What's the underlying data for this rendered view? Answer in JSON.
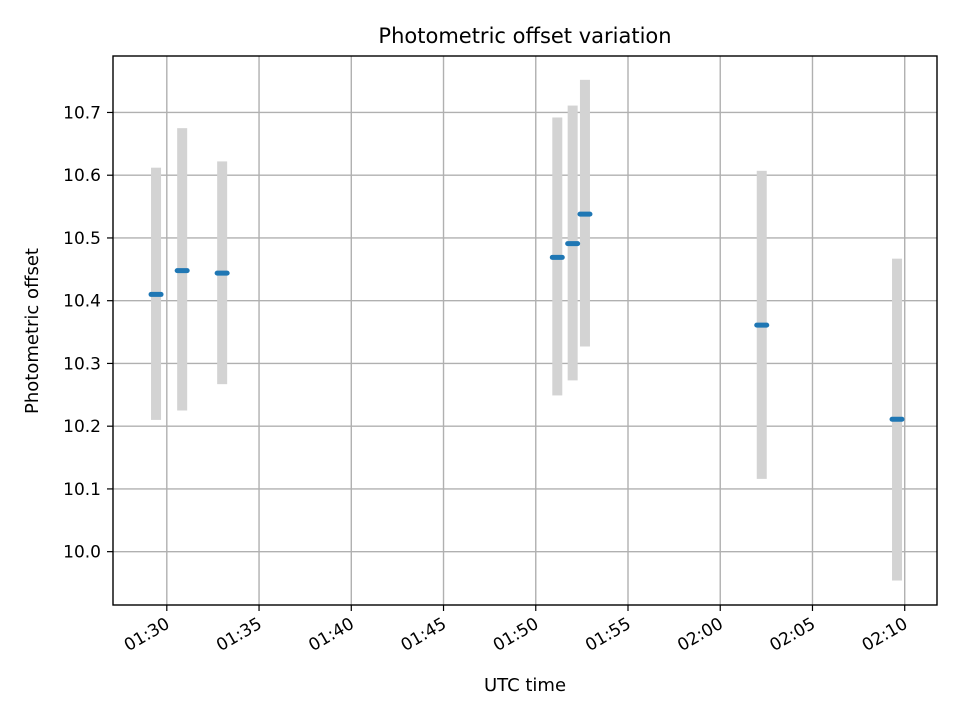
{
  "chart_data": {
    "type": "scatter",
    "title": "Photometric offset variation",
    "xlabel": "UTC time",
    "ylabel": "Photometric offset",
    "x_tick_labels": [
      "01:30",
      "01:35",
      "01:40",
      "01:45",
      "01:50",
      "01:55",
      "02:00",
      "02:05",
      "02:10"
    ],
    "y_tick_labels": [
      "10.0",
      "10.1",
      "10.2",
      "10.3",
      "10.4",
      "10.5",
      "10.6",
      "10.7"
    ],
    "x_ticks": [
      "01:30",
      "01:35",
      "01:40",
      "01:45",
      "01:50",
      "01:55",
      "02:00",
      "02:05",
      "02:10"
    ],
    "y_ticks": [
      10.0,
      10.1,
      10.2,
      10.3,
      10.4,
      10.5,
      10.6,
      10.7
    ],
    "xlim": [
      "01:27:05",
      "02:11:45"
    ],
    "ylim": [
      9.915,
      10.79
    ],
    "grid": true,
    "series": [
      {
        "points": [
          {
            "x": "01:29:25",
            "y": 10.41,
            "ymin": 10.21,
            "ymax": 10.612
          },
          {
            "x": "01:30:50",
            "y": 10.448,
            "ymin": 10.225,
            "ymax": 10.675
          },
          {
            "x": "01:33:00",
            "y": 10.444,
            "ymin": 10.267,
            "ymax": 10.622
          },
          {
            "x": "01:51:10",
            "y": 10.469,
            "ymin": 10.249,
            "ymax": 10.692
          },
          {
            "x": "01:52:00",
            "y": 10.491,
            "ymin": 10.273,
            "ymax": 10.711
          },
          {
            "x": "01:52:40",
            "y": 10.538,
            "ymin": 10.327,
            "ymax": 10.752
          },
          {
            "x": "02:02:15",
            "y": 10.361,
            "ymin": 10.116,
            "ymax": 10.607
          },
          {
            "x": "02:09:35",
            "y": 10.211,
            "ymin": 9.954,
            "ymax": 10.467
          }
        ]
      }
    ],
    "colors": {
      "point": "#1f77b4",
      "errorbar": "#d3d3d3",
      "grid": "#b0b0b0"
    }
  }
}
